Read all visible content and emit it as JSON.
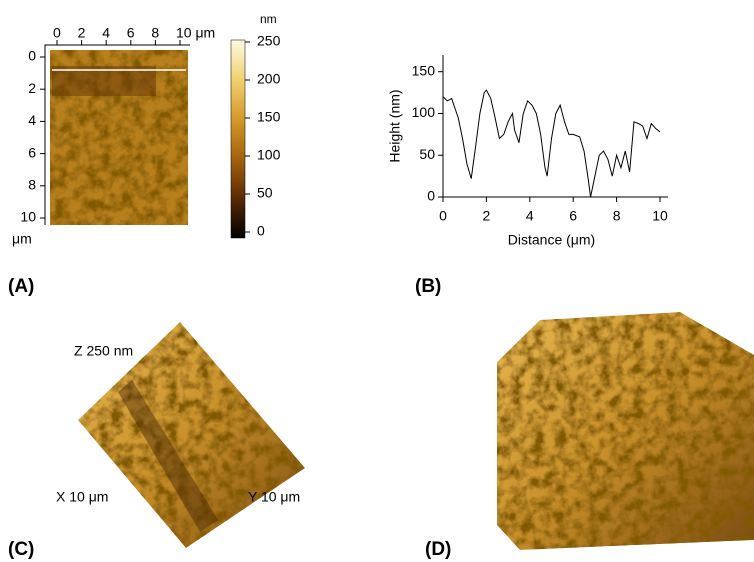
{
  "chart_data": [
    {
      "type": "heatmap",
      "panel_label": "(A)",
      "xlim": [
        0,
        10
      ],
      "ylim": [
        0,
        10
      ],
      "xticks": [
        0,
        2,
        4,
        6,
        8,
        {
          "value": 10,
          "label": "10 μm"
        }
      ],
      "yticks": [
        0,
        2,
        4,
        6,
        8,
        10
      ],
      "y_unit": "μm",
      "colorbar": {
        "unit": "nm",
        "lim": [
          0,
          250
        ],
        "ticks": [
          0,
          50,
          100,
          150,
          200,
          250
        ],
        "colormap": [
          "#000000",
          "#5a2a05",
          "#a4620e",
          "#d49a2a",
          "#f0d070",
          "#fffbe0"
        ]
      }
    },
    {
      "type": "line",
      "panel_label": "(B)",
      "xlabel": "Distance (μm)",
      "ylabel": "Height (nm)",
      "color": "#000000",
      "x": [
        0,
        0.2,
        0.4,
        0.5,
        0.7,
        0.9,
        1.1,
        1.3,
        1.5,
        1.7,
        1.9,
        2.0,
        2.2,
        2.4,
        2.6,
        2.8,
        3.0,
        3.2,
        3.3,
        3.5,
        3.7,
        3.9,
        4.1,
        4.3,
        4.5,
        4.7,
        4.8,
        5.0,
        5.2,
        5.4,
        5.6,
        5.8,
        6.0,
        6.3,
        6.5,
        6.7,
        6.8,
        7.0,
        7.2,
        7.4,
        7.6,
        7.8,
        8.0,
        8.2,
        8.4,
        8.6,
        8.8,
        9.0,
        9.2,
        9.4,
        9.6,
        9.8,
        10
      ],
      "values": [
        120,
        115,
        118,
        110,
        95,
        70,
        40,
        22,
        60,
        100,
        125,
        128,
        118,
        95,
        70,
        75,
        90,
        100,
        80,
        65,
        100,
        115,
        110,
        100,
        75,
        35,
        25,
        70,
        100,
        110,
        90,
        75,
        75,
        72,
        55,
        20,
        0,
        25,
        50,
        55,
        45,
        25,
        50,
        35,
        55,
        30,
        90,
        88,
        85,
        70,
        88,
        82,
        78
      ],
      "xlim": [
        0,
        10
      ],
      "ylim": [
        0,
        170
      ],
      "xticks": [
        0,
        2,
        4,
        6,
        8,
        10
      ],
      "yticks": [
        0,
        50,
        100,
        150
      ]
    },
    {
      "type": "surface",
      "panel_label": "(C)",
      "z_label": "Z 250 nm",
      "x_label": "X 10 μm",
      "y_label": "Y 10 μm"
    },
    {
      "type": "surface",
      "panel_label": "(D)"
    }
  ]
}
